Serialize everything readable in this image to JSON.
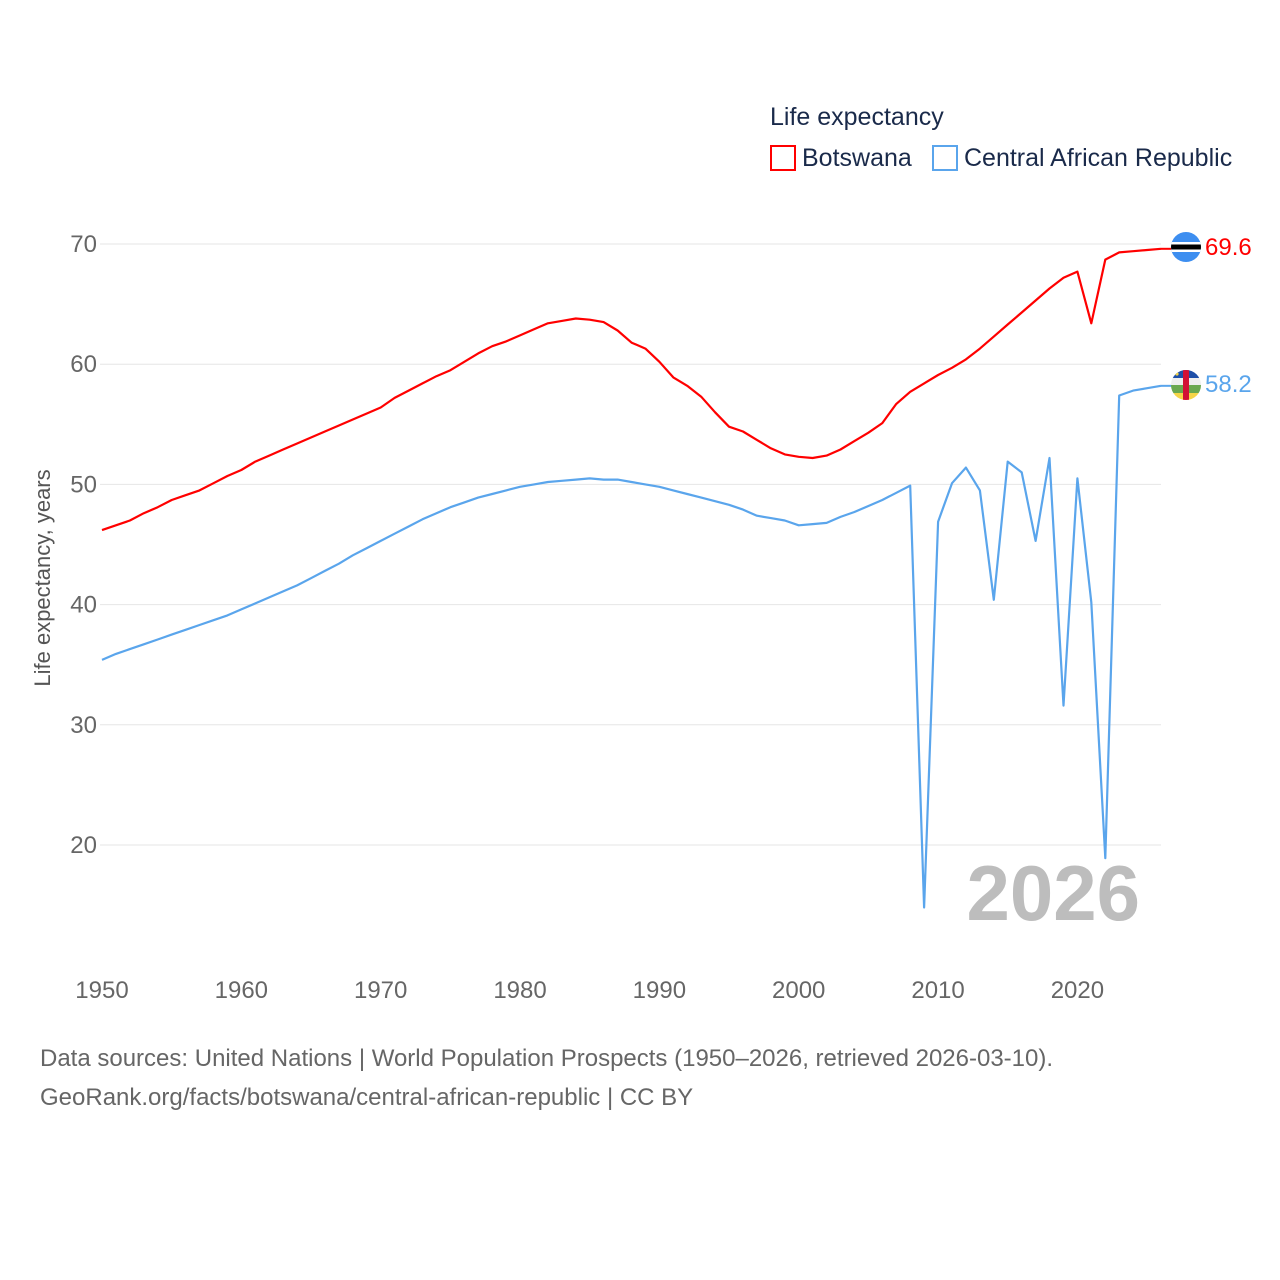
{
  "chart_data": {
    "type": "line",
    "title": "",
    "legend_title": "Life expectancy",
    "legend_position": "top-right",
    "xlabel": "",
    "ylabel": "Life expectancy, years",
    "xlim": [
      1950,
      2026
    ],
    "ylim": [
      12,
      72
    ],
    "grid": true,
    "x_ticks": [
      "1950",
      "1960",
      "1970",
      "1980",
      "1990",
      "2000",
      "2010",
      "2020"
    ],
    "y_ticks": [
      "20",
      "30",
      "40",
      "50",
      "60",
      "70"
    ],
    "year_watermark": "2026",
    "x": [
      1950,
      1951,
      1952,
      1953,
      1954,
      1955,
      1956,
      1957,
      1958,
      1959,
      1960,
      1961,
      1962,
      1963,
      1964,
      1965,
      1966,
      1967,
      1968,
      1969,
      1970,
      1971,
      1972,
      1973,
      1974,
      1975,
      1976,
      1977,
      1978,
      1979,
      1980,
      1981,
      1982,
      1983,
      1984,
      1985,
      1986,
      1987,
      1988,
      1989,
      1990,
      1991,
      1992,
      1993,
      1994,
      1995,
      1996,
      1997,
      1998,
      1999,
      2000,
      2001,
      2002,
      2003,
      2004,
      2005,
      2006,
      2007,
      2008,
      2009,
      2010,
      2011,
      2012,
      2013,
      2014,
      2015,
      2016,
      2017,
      2018,
      2019,
      2020,
      2021,
      2022,
      2023,
      2024,
      2025,
      2026
    ],
    "series": [
      {
        "name": "Botswana",
        "color": "#ff0000",
        "end_label": "69.6",
        "values": [
          46.2,
          46.6,
          47.0,
          47.6,
          48.1,
          48.7,
          49.1,
          49.5,
          50.1,
          50.7,
          51.2,
          51.9,
          52.4,
          52.9,
          53.4,
          53.9,
          54.4,
          54.9,
          55.4,
          55.9,
          56.4,
          57.2,
          57.8,
          58.4,
          59.0,
          59.5,
          60.2,
          60.9,
          61.5,
          61.9,
          62.4,
          62.9,
          63.4,
          63.6,
          63.8,
          63.7,
          63.5,
          62.8,
          61.8,
          61.3,
          60.2,
          58.9,
          58.2,
          57.3,
          56.0,
          54.8,
          54.4,
          53.7,
          53.0,
          52.5,
          52.3,
          52.2,
          52.4,
          52.9,
          53.6,
          54.3,
          55.1,
          56.7,
          57.7,
          58.4,
          59.1,
          59.7,
          60.4,
          61.3,
          62.3,
          63.3,
          64.3,
          65.3,
          66.3,
          67.2,
          67.7,
          63.4,
          68.7,
          69.3,
          69.4,
          69.5,
          69.6
        ]
      },
      {
        "name": "Central African Republic",
        "color": "#5aa5ec",
        "end_label": "58.2",
        "values": [
          35.4,
          35.9,
          36.3,
          36.7,
          37.1,
          37.5,
          37.9,
          38.3,
          38.7,
          39.1,
          39.6,
          40.1,
          40.6,
          41.1,
          41.6,
          42.2,
          42.8,
          43.4,
          44.1,
          44.7,
          45.3,
          45.9,
          46.5,
          47.1,
          47.6,
          48.1,
          48.5,
          48.9,
          49.2,
          49.5,
          49.8,
          50.0,
          50.2,
          50.3,
          50.4,
          50.5,
          50.4,
          50.4,
          50.2,
          50.0,
          49.8,
          49.5,
          49.2,
          48.9,
          48.6,
          48.3,
          47.9,
          47.4,
          47.2,
          47.0,
          46.6,
          46.7,
          46.8,
          47.3,
          47.7,
          48.2,
          48.7,
          49.3,
          49.9,
          14.8,
          46.9,
          50.1,
          51.4,
          49.5,
          40.4,
          51.9,
          51.0,
          45.3,
          52.2,
          31.6,
          50.5,
          40.2,
          18.9,
          57.4,
          57.8,
          58.0,
          58.2
        ]
      }
    ]
  },
  "footer": {
    "line1": "Data sources: United Nations | World Population Prospects (1950–2026, retrieved 2026-03-10).",
    "line2": "GeoRank.org/facts/botswana/central-african-republic | CC BY"
  }
}
